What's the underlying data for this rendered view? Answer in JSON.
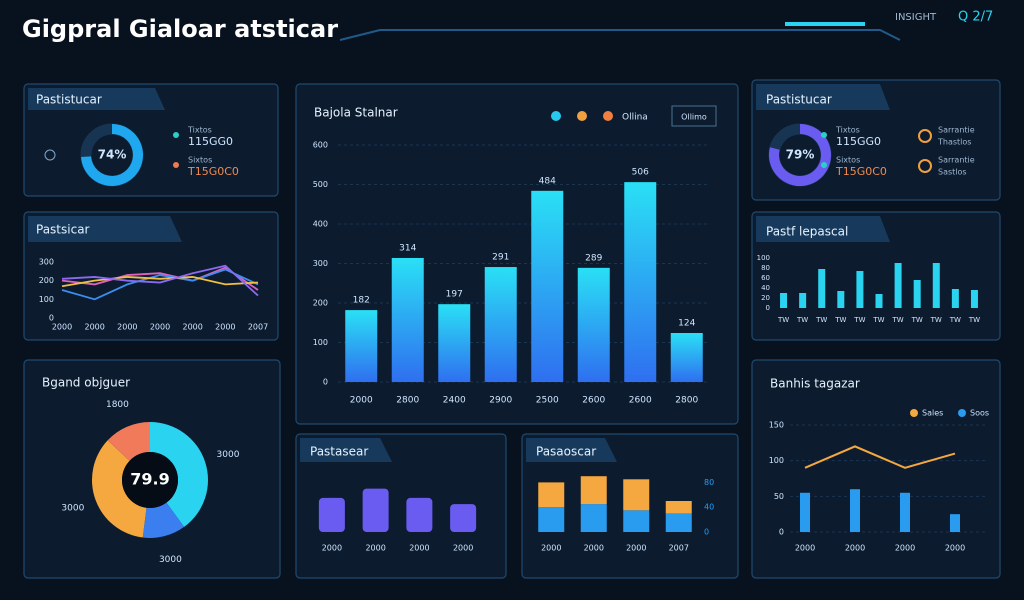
{
  "header": {
    "title": "Gigpral Gialoar atsticar",
    "status": "INSIGHT",
    "clock": "Q 2/7"
  },
  "ring_top": {
    "title": "Pastistucar",
    "center": "74%",
    "value": 74,
    "color": "#1fa8f0",
    "items": [
      {
        "label": "Tixtos",
        "value": "115GG0",
        "color": "#2ad0c8"
      },
      {
        "label": "Sixtos",
        "value": "T15G0C0",
        "color": "#f07a50"
      }
    ]
  },
  "line_panel": {
    "title": "Pastsicar",
    "ylim": [
      0,
      300
    ],
    "yticks": [
      0,
      100,
      200,
      300
    ],
    "categories": [
      "2000",
      "2000",
      "2000",
      "2000",
      "2000",
      "2000",
      "2007"
    ],
    "series": [
      {
        "color": "#e060c0",
        "values": [
          200,
          180,
          230,
          240,
          200,
          270,
          150
        ]
      },
      {
        "color": "#3a8ef0",
        "values": [
          150,
          100,
          180,
          230,
          200,
          260,
          180
        ]
      },
      {
        "color": "#f0c040",
        "values": [
          170,
          200,
          220,
          210,
          220,
          180,
          190
        ]
      },
      {
        "color": "#8a6af0",
        "values": [
          210,
          220,
          200,
          190,
          240,
          280,
          120
        ]
      }
    ]
  },
  "donut": {
    "title": "Bgand objguer",
    "center": "79.9",
    "labels": [
      "3000",
      "3000",
      "3000",
      "1800"
    ],
    "values": [
      40,
      12,
      35,
      13
    ],
    "colors": [
      "#2ad4f0",
      "#3a7ef0",
      "#f5a840",
      "#f07a5a"
    ]
  },
  "main": {
    "title": "Bajola Stalnar",
    "legend": {
      "colors": [
        "#29c8ef",
        "#f0a040",
        "#f08040"
      ],
      "label": "Ollina"
    },
    "filter": "Ollimo",
    "ylim": [
      0,
      600
    ],
    "yticks": [
      0,
      100,
      200,
      300,
      400,
      500,
      600
    ],
    "categories": [
      "2000",
      "2800",
      "2400",
      "2900",
      "2500",
      "2600",
      "2600",
      "2800"
    ],
    "values": [
      182,
      314,
      197,
      291,
      484,
      289,
      506,
      124
    ]
  },
  "mid_bars": {
    "title": "Pastasear",
    "ylim": [
      0,
      100
    ],
    "categories": [
      "2000",
      "2000",
      "2000",
      "2000"
    ],
    "values": [
      55,
      70,
      55,
      45
    ],
    "color": "#6a5cf0"
  },
  "stacked": {
    "title": "Pasaoscar",
    "ylim": [
      0,
      100
    ],
    "yticks": [
      0,
      40,
      80
    ],
    "categories": [
      "2000",
      "2000",
      "2000",
      "2007"
    ],
    "series": [
      {
        "color": "#2a9cf0",
        "values": [
          40,
          45,
          35,
          30
        ]
      },
      {
        "color": "#f5a840",
        "values": [
          40,
          45,
          50,
          20
        ]
      }
    ]
  },
  "ring_right": {
    "title": "Pastistucar",
    "center": "79%",
    "value": 79,
    "color": "#6a5cf0",
    "items": [
      {
        "label": "Tixtos",
        "value": "115GG0",
        "color": "#2ad0c8"
      },
      {
        "label": "Sixtos",
        "value": "T15G0C0",
        "color": "#2ad0c8"
      }
    ],
    "indicators": [
      {
        "label": "Sarrantie",
        "value": "Thastlos",
        "color": "#f0a040"
      },
      {
        "label": "Sarrantie",
        "value": "Sastlos",
        "color": "#f0a040"
      }
    ]
  },
  "bars_right": {
    "title": "Pastf lepascal",
    "ylim": [
      0,
      100
    ],
    "yticks": [
      0,
      20,
      40,
      60,
      80,
      100
    ],
    "categories": [
      "TW",
      "TW",
      "TW",
      "TW",
      "TW",
      "TW",
      "TW",
      "TW",
      "TW",
      "TW",
      "TW"
    ],
    "values": [
      30,
      30,
      78,
      34,
      74,
      28,
      90,
      56,
      90,
      38,
      36
    ],
    "color": "#2ad4f0"
  },
  "combo": {
    "title": "Banhis tagazar",
    "ylim": [
      0,
      150
    ],
    "yticks": [
      0,
      50,
      100,
      150
    ],
    "categories": [
      "2000",
      "2000",
      "2000",
      "2000"
    ],
    "series": [
      {
        "name": "Sales",
        "color": "#f5a840",
        "kind": "line",
        "values": [
          90,
          120,
          90,
          110
        ]
      },
      {
        "name": "Soos",
        "color": "#2a9cf0",
        "kind": "bar",
        "values": [
          55,
          60,
          55,
          25
        ]
      }
    ]
  }
}
